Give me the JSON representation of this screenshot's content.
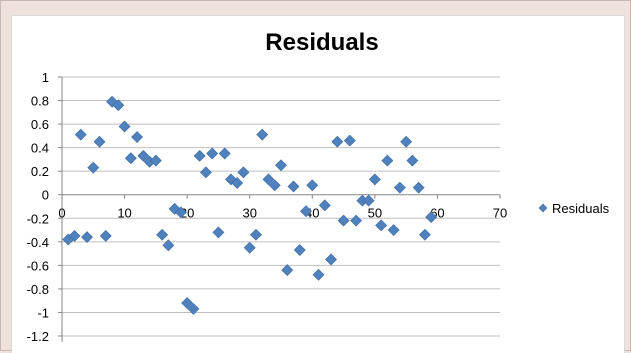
{
  "chart_data": {
    "type": "scatter",
    "title": "Residuals",
    "xlim": [
      0,
      70
    ],
    "ylim": [
      -1.2,
      1
    ],
    "x_ticks": [
      "0",
      "10",
      "20",
      "30",
      "40",
      "50",
      "60",
      "70"
    ],
    "y_ticks": [
      "1",
      "0.8",
      "0.6",
      "0.4",
      "0.2",
      "0",
      "-0.2",
      "-0.4",
      "-0.6",
      "-0.8",
      "-1",
      "-1.2"
    ],
    "grid": "horizontal",
    "legend_position": "right",
    "marker_color": "#4f81bd",
    "series": [
      {
        "name": "Residuals",
        "points": [
          [
            1,
            -0.38
          ],
          [
            2,
            -0.35
          ],
          [
            3,
            0.51
          ],
          [
            4,
            -0.36
          ],
          [
            5,
            0.23
          ],
          [
            6,
            0.45
          ],
          [
            7,
            -0.35
          ],
          [
            8,
            0.79
          ],
          [
            9,
            0.76
          ],
          [
            10,
            0.58
          ],
          [
            11,
            0.31
          ],
          [
            12,
            0.49
          ],
          [
            13,
            0.33
          ],
          [
            14,
            0.28
          ],
          [
            15,
            0.29
          ],
          [
            16,
            -0.34
          ],
          [
            17,
            -0.43
          ],
          [
            18,
            -0.12
          ],
          [
            19,
            -0.15
          ],
          [
            20,
            -0.92
          ],
          [
            21,
            -0.97
          ],
          [
            22,
            0.33
          ],
          [
            23,
            0.19
          ],
          [
            24,
            0.35
          ],
          [
            25,
            -0.32
          ],
          [
            26,
            0.35
          ],
          [
            27,
            0.13
          ],
          [
            28,
            0.1
          ],
          [
            29,
            0.19
          ],
          [
            30,
            -0.45
          ],
          [
            31,
            -0.34
          ],
          [
            32,
            0.51
          ],
          [
            33,
            0.13
          ],
          [
            34,
            0.08
          ],
          [
            35,
            0.25
          ],
          [
            36,
            -0.64
          ],
          [
            37,
            0.07
          ],
          [
            38,
            -0.47
          ],
          [
            39,
            -0.14
          ],
          [
            40,
            0.08
          ],
          [
            41,
            -0.68
          ],
          [
            42,
            -0.09
          ],
          [
            43,
            -0.55
          ],
          [
            44,
            0.45
          ],
          [
            45,
            -0.22
          ],
          [
            46,
            0.46
          ],
          [
            47,
            -0.22
          ],
          [
            48,
            -0.05
          ],
          [
            49,
            -0.05
          ],
          [
            50,
            0.13
          ],
          [
            51,
            -0.26
          ],
          [
            52,
            0.29
          ],
          [
            53,
            -0.3
          ],
          [
            54,
            0.06
          ],
          [
            55,
            0.45
          ],
          [
            56,
            0.29
          ],
          [
            57,
            0.06
          ],
          [
            58,
            -0.34
          ],
          [
            59,
            -0.19
          ]
        ]
      }
    ]
  }
}
